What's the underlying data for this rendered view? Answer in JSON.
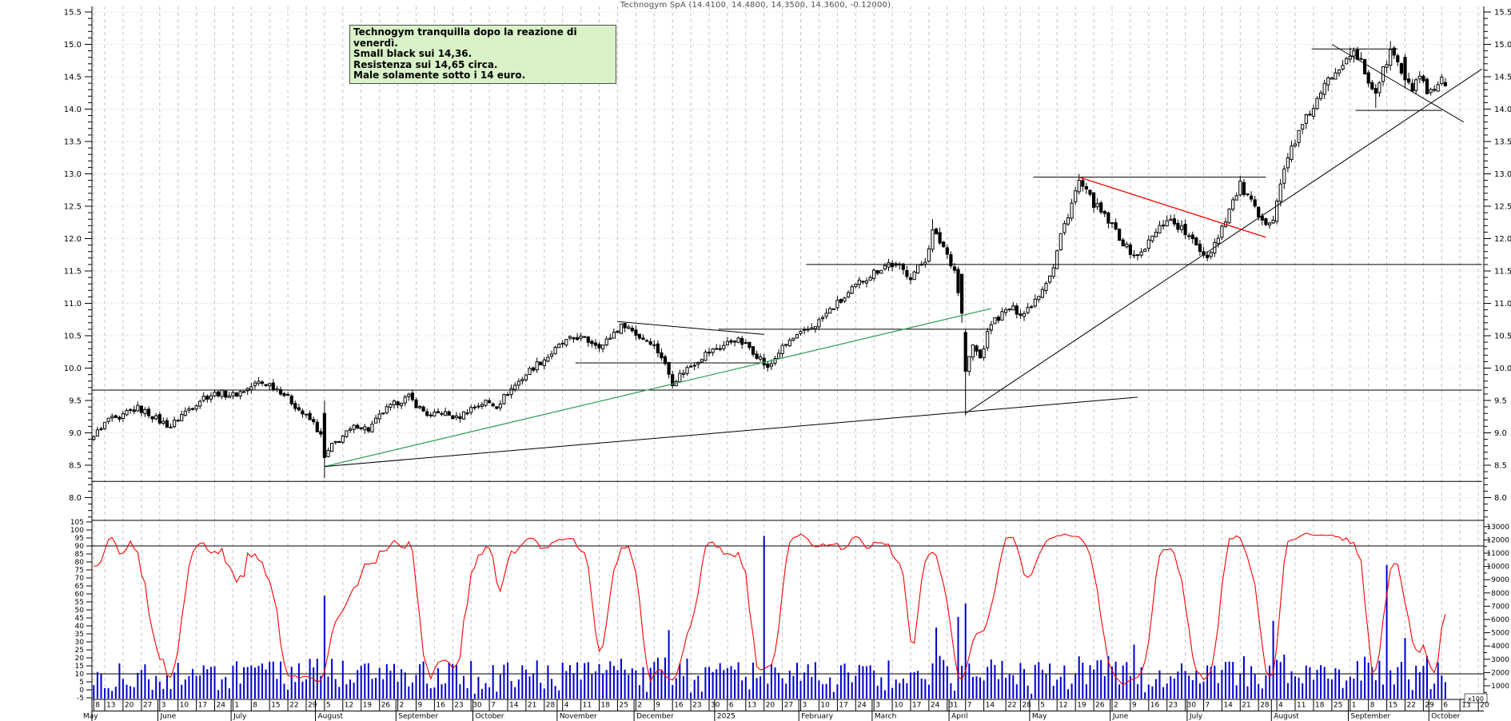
{
  "title": "Technogym SpA (14.4100, 14.4800, 14.3500, 14.3600, -0.12000)",
  "annotation_box": {
    "lines": [
      "Technogym tranquilla dopo la reazione di venerdì.",
      "Small black sui 14,36.",
      "Resistenza sui 14,65 circa.",
      "Male solamente sotto i 14 euro."
    ],
    "bg_color": "#d9f2c8",
    "border_color": "#4f4f4f"
  },
  "colors": {
    "up_candle": "#ffffff",
    "down_candle": "#000000",
    "candle_outline": "#000000",
    "volume": "#0000cc",
    "oscillator": "#ff0000",
    "green_trendline": "#3aa45e",
    "red_trendline": "#ff0000",
    "grid": "#c3c3c3",
    "axis": "#000000",
    "title_text": "#4d4d4d"
  },
  "price_axis": {
    "labels": [
      "15.5",
      "15.0",
      "14.5",
      "14.0",
      "13.5",
      "13.0",
      "12.5",
      "12.0",
      "11.5",
      "11.0",
      "10.5",
      "10.0",
      "9.5",
      "9.0",
      "8.5",
      "8.0"
    ],
    "min": 8.0,
    "max": 15.5,
    "step": 0.5
  },
  "oscillator_axis": {
    "labels": [
      "105",
      "100",
      "95",
      "90",
      "85",
      "80",
      "75",
      "70",
      "65",
      "60",
      "55",
      "50",
      "45",
      "40",
      "35",
      "30",
      "25",
      "20",
      "15",
      "10",
      "5",
      "0",
      "-5"
    ],
    "overbought": 90,
    "oversold": 10
  },
  "volume_axis": {
    "labels": [
      "13000",
      "12000",
      "11000",
      "10000",
      "9000",
      "8000",
      "7000",
      "6000",
      "5000",
      "4000",
      "3000",
      "2000",
      "1000"
    ],
    "multiplier_label": "x100"
  },
  "x_axis": {
    "start_date": "2024-05-08",
    "end_date": "2025-10-21",
    "months": [
      {
        "label": "May",
        "year": 2024,
        "month": 5,
        "days": [
          8,
          13,
          20,
          27
        ]
      },
      {
        "label": "June",
        "year": 2024,
        "month": 6,
        "days": [
          3,
          10,
          17,
          24
        ]
      },
      {
        "label": "July",
        "year": 2024,
        "month": 7,
        "days": [
          1,
          8,
          15,
          22,
          29
        ]
      },
      {
        "label": "August",
        "year": 2024,
        "month": 8,
        "days": [
          5,
          12,
          19,
          26
        ]
      },
      {
        "label": "September",
        "year": 2024,
        "month": 9,
        "days": [
          2,
          9,
          16,
          23,
          30
        ]
      },
      {
        "label": "October",
        "year": 2024,
        "month": 10,
        "days": [
          7,
          14,
          21,
          28
        ]
      },
      {
        "label": "November",
        "year": 2024,
        "month": 11,
        "days": [
          4,
          11,
          18,
          25
        ]
      },
      {
        "label": "December",
        "year": 2024,
        "month": 12,
        "days": [
          2,
          9,
          16,
          23,
          30
        ]
      },
      {
        "label": "2025",
        "year": 2025,
        "month": 1,
        "days": [
          6,
          13,
          20,
          27
        ]
      },
      {
        "label": "February",
        "year": 2025,
        "month": 2,
        "days": [
          3,
          10,
          17,
          24
        ]
      },
      {
        "label": "March",
        "year": 2025,
        "month": 3,
        "days": [
          3,
          10,
          17,
          24,
          31
        ]
      },
      {
        "label": "April",
        "year": 2025,
        "month": 4,
        "days": [
          7,
          14,
          22,
          28
        ]
      },
      {
        "label": "May",
        "year": 2025,
        "month": 5,
        "days": [
          5,
          12,
          19,
          26
        ]
      },
      {
        "label": "June",
        "year": 2025,
        "month": 6,
        "days": [
          2,
          9,
          16,
          23,
          30
        ]
      },
      {
        "label": "July",
        "year": 2025,
        "month": 7,
        "days": [
          7,
          14,
          21,
          28
        ]
      },
      {
        "label": "August",
        "year": 2025,
        "month": 8,
        "days": [
          4,
          11,
          18,
          25
        ]
      },
      {
        "label": "September",
        "year": 2025,
        "month": 9,
        "days": [
          1,
          8,
          15,
          22,
          29
        ]
      },
      {
        "label": "October",
        "year": 2025,
        "month": 10,
        "days": [
          6,
          13,
          20
        ]
      }
    ]
  },
  "chart_data": {
    "type": "candlestick",
    "title": "Technogym SpA (14.4100, 14.4800, 14.3500, 14.3600, -0.12000)",
    "xlabel": "",
    "ylabel": "",
    "price_range": [
      8.0,
      15.5
    ],
    "last_quote": {
      "open": 14.41,
      "high": 14.48,
      "low": 14.35,
      "close": 14.36,
      "change": -0.12
    },
    "close_anchors": [
      [
        "2024-05-08",
        8.98
      ],
      [
        "2024-05-10",
        9.05
      ],
      [
        "2024-05-14",
        9.22
      ],
      [
        "2024-05-17",
        9.18
      ],
      [
        "2024-05-21",
        9.32
      ],
      [
        "2024-05-24",
        9.38
      ],
      [
        "2024-05-29",
        9.3
      ],
      [
        "2024-06-03",
        9.18
      ],
      [
        "2024-06-06",
        9.1
      ],
      [
        "2024-06-11",
        9.28
      ],
      [
        "2024-06-14",
        9.42
      ],
      [
        "2024-06-19",
        9.55
      ],
      [
        "2024-06-25",
        9.62
      ],
      [
        "2024-07-01",
        9.58
      ],
      [
        "2024-07-05",
        9.68
      ],
      [
        "2024-07-10",
        9.78
      ],
      [
        "2024-07-15",
        9.75
      ],
      [
        "2024-07-18",
        9.65
      ],
      [
        "2024-07-23",
        9.48
      ],
      [
        "2024-07-26",
        9.3
      ],
      [
        "2024-07-31",
        9.15
      ],
      [
        "2024-08-02",
        8.95
      ],
      [
        "2024-08-05",
        8.62
      ],
      [
        "2024-08-07",
        8.8
      ],
      [
        "2024-08-12",
        8.95
      ],
      [
        "2024-08-16",
        9.12
      ],
      [
        "2024-08-21",
        9.05
      ],
      [
        "2024-08-27",
        9.32
      ],
      [
        "2024-09-02",
        9.48
      ],
      [
        "2024-09-05",
        9.55
      ],
      [
        "2024-09-10",
        9.38
      ],
      [
        "2024-09-13",
        9.25
      ],
      [
        "2024-09-18",
        9.32
      ],
      [
        "2024-09-24",
        9.22
      ],
      [
        "2024-09-30",
        9.38
      ],
      [
        "2024-10-04",
        9.48
      ],
      [
        "2024-10-09",
        9.42
      ],
      [
        "2024-10-15",
        9.68
      ],
      [
        "2024-10-18",
        9.85
      ],
      [
        "2024-10-23",
        10.02
      ],
      [
        "2024-10-29",
        10.18
      ],
      [
        "2024-11-04",
        10.38
      ],
      [
        "2024-11-08",
        10.48
      ],
      [
        "2024-11-13",
        10.42
      ],
      [
        "2024-11-19",
        10.35
      ],
      [
        "2024-11-22",
        10.55
      ],
      [
        "2024-11-27",
        10.68
      ],
      [
        "2024-12-03",
        10.48
      ],
      [
        "2024-12-06",
        10.42
      ],
      [
        "2024-12-11",
        10.18
      ],
      [
        "2024-12-16",
        9.78
      ],
      [
        "2024-12-19",
        9.95
      ],
      [
        "2024-12-27",
        10.22
      ],
      [
        "2025-01-03",
        10.35
      ],
      [
        "2025-01-08",
        10.45
      ],
      [
        "2025-01-14",
        10.32
      ],
      [
        "2025-01-17",
        10.15
      ],
      [
        "2025-01-21",
        9.98
      ],
      [
        "2025-01-24",
        10.25
      ],
      [
        "2025-01-29",
        10.42
      ],
      [
        "2025-02-04",
        10.55
      ],
      [
        "2025-02-10",
        10.72
      ],
      [
        "2025-02-14",
        10.95
      ],
      [
        "2025-02-19",
        11.08
      ],
      [
        "2025-02-25",
        11.32
      ],
      [
        "2025-03-03",
        11.48
      ],
      [
        "2025-03-07",
        11.62
      ],
      [
        "2025-03-12",
        11.55
      ],
      [
        "2025-03-17",
        11.42
      ],
      [
        "2025-03-21",
        11.68
      ],
      [
        "2025-03-25",
        12.1
      ],
      [
        "2025-03-28",
        11.88
      ],
      [
        "2025-04-02",
        11.52
      ],
      [
        "2025-04-04",
        10.85
      ],
      [
        "2025-04-07",
        9.95
      ],
      [
        "2025-04-09",
        10.35
      ],
      [
        "2025-04-11",
        10.15
      ],
      [
        "2025-04-16",
        10.7
      ],
      [
        "2025-04-23",
        10.92
      ],
      [
        "2025-04-29",
        10.85
      ],
      [
        "2025-05-05",
        11.15
      ],
      [
        "2025-05-09",
        11.55
      ],
      [
        "2025-05-13",
        12.05
      ],
      [
        "2025-05-16",
        12.55
      ],
      [
        "2025-05-20",
        12.88
      ],
      [
        "2025-05-23",
        12.62
      ],
      [
        "2025-05-28",
        12.4
      ],
      [
        "2025-06-03",
        12.12
      ],
      [
        "2025-06-06",
        11.85
      ],
      [
        "2025-06-11",
        11.72
      ],
      [
        "2025-06-17",
        12.02
      ],
      [
        "2025-06-23",
        12.32
      ],
      [
        "2025-06-27",
        12.15
      ],
      [
        "2025-07-02",
        11.95
      ],
      [
        "2025-07-08",
        11.72
      ],
      [
        "2025-07-11",
        12.05
      ],
      [
        "2025-07-16",
        12.45
      ],
      [
        "2025-07-21",
        12.82
      ],
      [
        "2025-07-24",
        12.55
      ],
      [
        "2025-07-29",
        12.22
      ],
      [
        "2025-08-01",
        12.35
      ],
      [
        "2025-08-05",
        12.85
      ],
      [
        "2025-08-08",
        13.42
      ],
      [
        "2025-08-12",
        13.62
      ],
      [
        "2025-08-15",
        13.95
      ],
      [
        "2025-08-19",
        14.12
      ],
      [
        "2025-08-22",
        14.45
      ],
      [
        "2025-08-27",
        14.68
      ],
      [
        "2025-09-01",
        14.88
      ],
      [
        "2025-09-04",
        14.72
      ],
      [
        "2025-09-08",
        14.42
      ],
      [
        "2025-09-10",
        14.28
      ],
      [
        "2025-09-12",
        14.58
      ],
      [
        "2025-09-16",
        14.9
      ],
      [
        "2025-09-18",
        14.72
      ],
      [
        "2025-09-22",
        14.4
      ],
      [
        "2025-09-24",
        14.32
      ],
      [
        "2025-09-26",
        14.52
      ],
      [
        "2025-09-30",
        14.2
      ],
      [
        "2025-10-02",
        14.25
      ],
      [
        "2025-10-06",
        14.48
      ],
      [
        "2025-10-07",
        14.36
      ]
    ],
    "candle_overrides": {
      "2024-08-05": {
        "open": 9.3,
        "high": 9.5,
        "low": 8.3,
        "close": 8.62
      },
      "2025-03-25": {
        "high": 12.3
      },
      "2025-04-04": {
        "open": 11.45,
        "close": 10.85,
        "low": 10.7
      },
      "2025-04-07": {
        "open": 10.55,
        "high": 10.6,
        "low": 9.27,
        "close": 9.95
      },
      "2025-05-20": {
        "high": 13.0
      },
      "2025-09-01": {
        "high": 14.95
      },
      "2025-09-10": {
        "low": 14.02
      },
      "2025-09-16": {
        "high": 15.05
      },
      "2025-09-22": {
        "open": 14.8,
        "high": 14.85,
        "low": 14.32
      },
      "2025-10-07": {
        "open": 14.41,
        "high": 14.48,
        "low": 14.35,
        "close": 14.36
      }
    },
    "volume_spikes_x100": {
      "2024-08-05": 7800,
      "2024-12-13": 5200,
      "2025-01-20": 12300,
      "2025-03-26": 5400,
      "2025-04-03": 6200,
      "2025-04-07": 7200,
      "2025-06-10": 4100,
      "2025-08-01": 5900,
      "2025-09-15": 10100,
      "2025-09-22": 4600
    },
    "oscillator": {
      "kind": "stochastic",
      "window": 10,
      "smooth": 3,
      "overbought": 90,
      "oversold": 10
    },
    "annotations": {
      "horizontal_lines": [
        {
          "price": 9.66,
          "from": "2024-05-08",
          "to": "2025-10-21"
        },
        {
          "price": 8.25,
          "from": "2024-05-08",
          "to": "2025-10-21"
        },
        {
          "price": 11.6,
          "from": "2025-02-05",
          "to": "2025-10-21"
        },
        {
          "price": 10.6,
          "from": "2025-01-02",
          "to": "2025-04-16"
        },
        {
          "price": 10.08,
          "from": "2024-11-08",
          "to": "2025-01-17"
        },
        {
          "price": 12.95,
          "from": "2025-05-02",
          "to": "2025-07-30"
        },
        {
          "price": 14.93,
          "from": "2025-08-18",
          "to": "2025-09-18"
        },
        {
          "price": 13.98,
          "from": "2025-09-03",
          "to": "2025-10-06"
        }
      ],
      "trendlines": [
        {
          "name": "green-support",
          "color": "#3aa45e",
          "from": [
            "2024-08-05",
            8.48
          ],
          "to": [
            "2025-04-16",
            10.92
          ]
        },
        {
          "name": "fan-shallow-support",
          "color": "#000000",
          "from": [
            "2024-08-05",
            8.48
          ],
          "to": [
            "2025-06-11",
            9.55
          ]
        },
        {
          "name": "steep-support",
          "color": "#000000",
          "from": [
            "2025-04-07",
            9.3
          ],
          "to": [
            "2025-10-21",
            14.62
          ]
        },
        {
          "name": "red-resistance",
          "color": "#ff0000",
          "from": [
            "2025-05-20",
            12.95
          ],
          "to": [
            "2025-07-30",
            12.02
          ]
        },
        {
          "name": "top-descending",
          "color": "#000000",
          "from": [
            "2025-08-25",
            15.0
          ],
          "to": [
            "2025-10-14",
            13.8
          ]
        },
        {
          "name": "nov-descending",
          "color": "#000000",
          "from": [
            "2024-11-25",
            10.72
          ],
          "to": [
            "2025-01-20",
            10.52
          ]
        }
      ]
    }
  }
}
